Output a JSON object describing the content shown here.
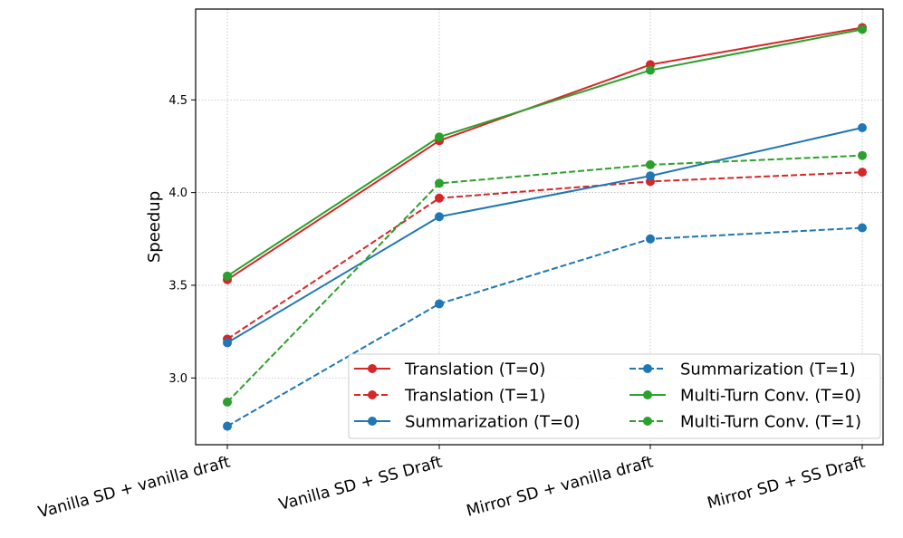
{
  "chart_data": {
    "type": "line",
    "title": "",
    "xlabel": "",
    "ylabel": "Speedup",
    "categories": [
      "Vanilla SD + vanilla draft",
      "Vanilla SD + SS Draft",
      "Mirror SD + vanilla draft",
      "Mirror SD + SS Draft"
    ],
    "ylim": [
      2.64,
      4.99
    ],
    "yticks": [
      3.0,
      3.5,
      4.0,
      4.5
    ],
    "ytick_labels": [
      "3.0",
      "3.5",
      "4.0",
      "4.5"
    ],
    "grid": true,
    "legend_position": "lower-right",
    "series": [
      {
        "name": "Translation (T=0)",
        "values": [
          3.53,
          4.28,
          4.69,
          4.89
        ],
        "color": "#d62728",
        "dash": "solid"
      },
      {
        "name": "Translation (T=1)",
        "values": [
          3.21,
          3.97,
          4.06,
          4.11
        ],
        "color": "#d62728",
        "dash": "dashed"
      },
      {
        "name": "Summarization (T=0)",
        "values": [
          3.19,
          3.87,
          4.09,
          4.35
        ],
        "color": "#1f77b4",
        "dash": "solid"
      },
      {
        "name": "Summarization (T=1)",
        "values": [
          2.74,
          3.4,
          3.75,
          3.81
        ],
        "color": "#1f77b4",
        "dash": "dashed"
      },
      {
        "name": "Multi-Turn Conv. (T=0)",
        "values": [
          3.55,
          4.3,
          4.66,
          4.88
        ],
        "color": "#2ca02c",
        "dash": "solid"
      },
      {
        "name": "Multi-Turn Conv. (T=1)",
        "values": [
          2.87,
          4.05,
          4.15,
          4.2
        ],
        "color": "#2ca02c",
        "dash": "dashed"
      }
    ]
  }
}
